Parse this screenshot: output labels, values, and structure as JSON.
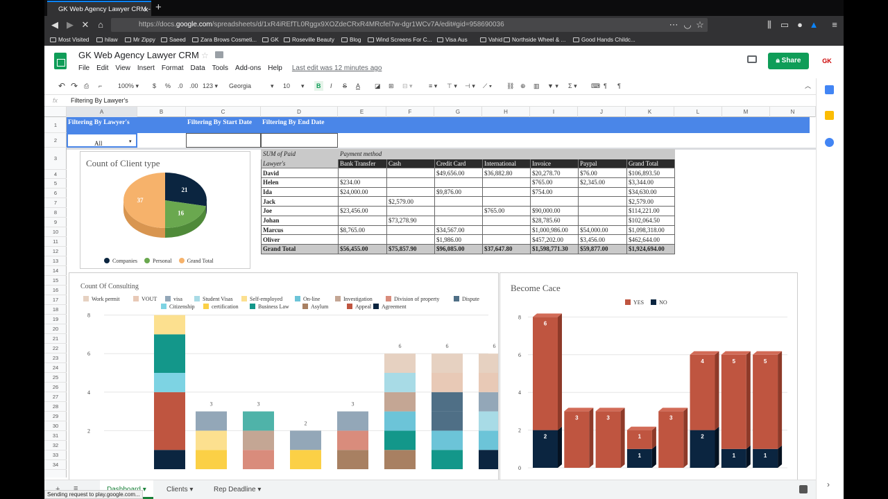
{
  "browser": {
    "tab_title": "GK Web Agency Lawyer CRM -",
    "url_prefix": "https://docs.",
    "url_domain": "google.com",
    "url_rest": "/spreadsheets/d/1xR4iREfTL0Rggx9XOZdeCRxR4MRcfel7w-dgr1WCv7A/edit#gid=958690036",
    "bookmarks": [
      "Most Visited",
      "hilaw",
      "Mr Zippy",
      "Saeed",
      "Zara Brows Cosmeti...",
      "GK",
      "Roseville Beauty",
      "Blog",
      "Wind Screens For C...",
      "Visa Aus",
      "Vahid",
      "Northside Wheel & ...",
      "Good Hands Childc..."
    ]
  },
  "sheets": {
    "doc_title": "GK Web Agency Lawyer CRM",
    "menu": [
      "File",
      "Edit",
      "View",
      "Insert",
      "Format",
      "Data",
      "Tools",
      "Add-ons",
      "Help"
    ],
    "last_edit": "Last edit was 12 minutes ago",
    "share": "Share",
    "toolbar": {
      "zoom": "100%",
      "currency": "$",
      "percent": "%",
      "dec_less": ".0",
      "dec_more": ".00",
      "format": "123",
      "font": "Georgia",
      "size": "10",
      "bold": "B",
      "italic": "I",
      "strike": "S",
      "textcolor": "A"
    },
    "formula_fx": "fx",
    "formula_value": "Filtering By Lawyer's",
    "columns": [
      "A",
      "B",
      "C",
      "D",
      "E",
      "F",
      "G",
      "H",
      "I",
      "J",
      "K",
      "L",
      "M",
      "N"
    ],
    "rows": [
      "1",
      "2",
      "3",
      "4",
      "5",
      "6",
      "7",
      "8",
      "9",
      "10",
      "11",
      "12",
      "13",
      "14",
      "15",
      "16",
      "17",
      "18",
      "19",
      "20",
      "21",
      "22",
      "23",
      "24",
      "25",
      "26",
      "27",
      "28",
      "29",
      "30",
      "31",
      "32",
      "33",
      "34"
    ],
    "filters": {
      "lawyer_label": "Filtering By Lawyer's",
      "lawyer_value": "All",
      "start_label": "Filtering By Start Date",
      "end_label": "Filtering By End Date"
    },
    "tabs": [
      "Dashboard",
      "Clients",
      "Rep Deadline"
    ],
    "status": "Sending request to play.google.com..."
  },
  "pivot": {
    "corner": "SUM of Paid",
    "group_label": "Payment method",
    "row_label": "Lawyer's",
    "columns": [
      "Bank Transfer",
      "Cash",
      "Credit Card",
      "International",
      "Invoice",
      "Paypal",
      "Grand Total"
    ],
    "rows": [
      {
        "name": "David",
        "cells": [
          "",
          "",
          "$49,656.00",
          "$36,882.80",
          "$20,278.70",
          "$76.00",
          "$106,893.50"
        ]
      },
      {
        "name": "Helen",
        "cells": [
          "$234.00",
          "",
          "",
          "",
          "$765.00",
          "$2,345.00",
          "$3,344.00"
        ]
      },
      {
        "name": "Ida",
        "cells": [
          "$24,000.00",
          "",
          "$9,876.00",
          "",
          "$754.00",
          "",
          "$34,630.00"
        ]
      },
      {
        "name": "Jack",
        "cells": [
          "",
          "$2,579.00",
          "",
          "",
          "",
          "",
          "$2,579.00"
        ]
      },
      {
        "name": "Joe",
        "cells": [
          "$23,456.00",
          "",
          "",
          "$765.00",
          "$90,000.00",
          "",
          "$114,221.00"
        ]
      },
      {
        "name": "Johan",
        "cells": [
          "",
          "$73,278.90",
          "",
          "",
          "$28,785.60",
          "",
          "$102,064.50"
        ]
      },
      {
        "name": "Marcus",
        "cells": [
          "$8,765.00",
          "",
          "$34,567.00",
          "",
          "$1,000,986.00",
          "$54,000.00",
          "$1,098,318.00"
        ]
      },
      {
        "name": "Oliver",
        "cells": [
          "",
          "",
          "$1,986.00",
          "",
          "$457,202.00",
          "$3,456.00",
          "$462,644.00"
        ]
      }
    ],
    "total": {
      "name": "Grand Total",
      "cells": [
        "$56,455.00",
        "$75,857.90",
        "$96,085.00",
        "$37,647.80",
        "$1,598,771.30",
        "$59,877.00",
        "$1,924,694.00"
      ]
    }
  },
  "chart_data": [
    {
      "type": "pie",
      "title": "Count of Client type",
      "labels": [
        "Companies",
        "Personal",
        "Grand Total"
      ],
      "values": [
        21,
        16,
        37
      ],
      "colors": [
        "#0b2540",
        "#6aa84f",
        "#f6b26b"
      ],
      "legend": "bottom"
    },
    {
      "type": "bar",
      "stacked": true,
      "title": "Count Of Consulting",
      "legend": "top",
      "ylim": [
        0,
        8
      ],
      "yticks": [
        2,
        4,
        6,
        8
      ],
      "series_names": [
        "Work permit",
        "VOUT",
        "visa",
        "Student Visas",
        "Self-employed",
        "On-line",
        "Investigation",
        "Division of property",
        "Dispute",
        "Citizenship",
        "certification",
        "Business Law",
        "Asylum",
        "Appeal",
        "Agreement"
      ],
      "series_colors": [
        "#e6d1c1",
        "#e8c9b6",
        "#93a7b8",
        "#a8dbe6",
        "#fce08f",
        "#6cc4d8",
        "#c4a694",
        "#d98c7c",
        "#4f6f86",
        "#7dd3e3",
        "#fbd046",
        "#13978a",
        "#a88062",
        "#bf5540",
        "#0b2540"
      ],
      "totals": [
        8,
        3,
        3,
        2,
        3,
        6,
        6,
        6
      ],
      "stacks": [
        {
          "colors": [
            "#0b2540",
            "#bf5540",
            "#7dd3e3",
            "#13978a",
            "#fce08f"
          ],
          "values": [
            1,
            3,
            1,
            2,
            1
          ]
        },
        {
          "colors": [
            "#fbd046",
            "#fce08f",
            "#93a7b8"
          ],
          "values": [
            1,
            1,
            1
          ]
        },
        {
          "colors": [
            "#d98c7c",
            "#c4a694",
            "#4fb3a9"
          ],
          "values": [
            1,
            1,
            1
          ]
        },
        {
          "colors": [
            "#fbd046",
            "#93a7b8"
          ],
          "values": [
            1,
            1
          ]
        },
        {
          "colors": [
            "#a88062",
            "#d98c7c",
            "#93a7b8"
          ],
          "values": [
            1,
            1,
            1
          ]
        },
        {
          "colors": [
            "#a88062",
            "#13978a",
            "#6cc4d8",
            "#c4a694",
            "#a8dbe6",
            "#e6d1c1"
          ],
          "values": [
            1,
            1,
            1,
            1,
            1,
            1
          ]
        },
        {
          "colors": [
            "#13978a",
            "#6cc4d8",
            "#4f6f86",
            "#4f6f86",
            "#e8c9b6",
            "#e6d1c1"
          ],
          "values": [
            1,
            1,
            1,
            1,
            1,
            1
          ]
        },
        {
          "colors": [
            "#0b2540",
            "#6cc4d8",
            "#a8dbe6",
            "#93a7b8",
            "#e8c9b6",
            "#e6d1c1"
          ],
          "values": [
            1,
            1,
            1,
            1,
            1,
            1
          ]
        }
      ]
    },
    {
      "type": "bar",
      "stacked": true,
      "title": "Become Cace",
      "legend": "top",
      "ylim": [
        0,
        8
      ],
      "yticks": [
        0,
        2,
        4,
        6,
        8
      ],
      "series": [
        {
          "name": "YES",
          "color": "#bf5540",
          "values": [
            6,
            3,
            3,
            1,
            3,
            4,
            5,
            5
          ]
        },
        {
          "name": "NO",
          "color": "#0b2540",
          "values": [
            2,
            0,
            0,
            1,
            0,
            2,
            1,
            1
          ]
        }
      ]
    }
  ]
}
